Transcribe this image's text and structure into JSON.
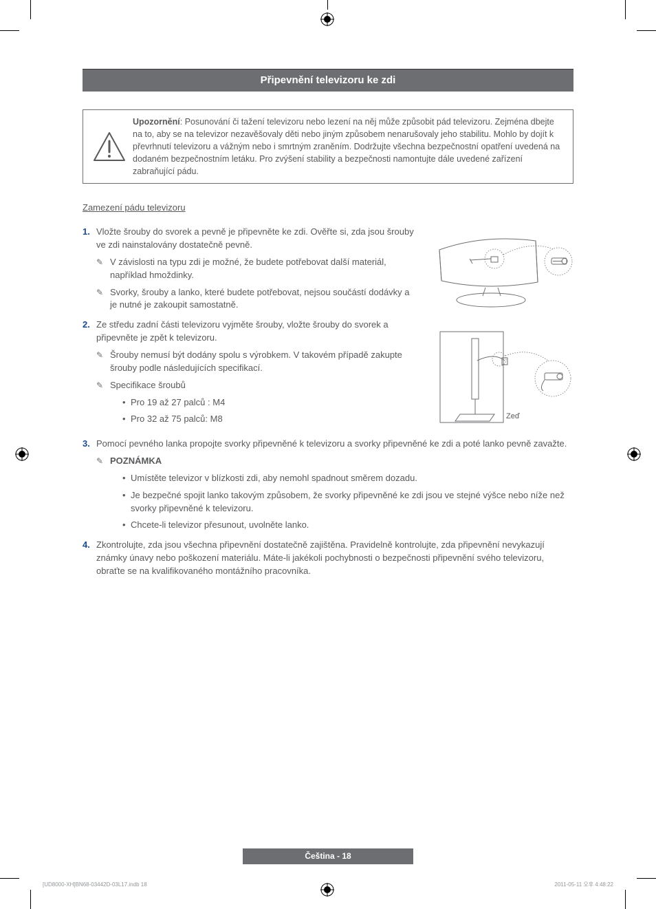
{
  "crop_marks": {
    "color": "#000000"
  },
  "section": {
    "title": "Připevnění televizoru ke zdi"
  },
  "warning": {
    "label": "Upozornění",
    "text": ": Posunování či tažení televizoru nebo lezení na něj může způsobit pád televizoru. Zejména dbejte na to, aby se na televizor nezavěšovaly děti nebo jiným způsobem nenarušovaly jeho stabilitu. Mohlo by dojít k převrhnutí televizoru a vážným nebo i smrtným zraněním. Dodržujte všechna bezpečnostní opatření uvedená na dodaném bezpečnostním letáku. Pro zvýšení stability a bezpečnosti namontujte dále uvedené zařízení zabraňující pádu."
  },
  "subheading": "Zamezení pádu televizoru",
  "note_glyph": "✎",
  "illustration": {
    "wall_label": "Zeď",
    "stroke": "#6d6e71",
    "dash": "1.5 2"
  },
  "steps": [
    {
      "text": "Vložte šrouby do svorek a pevně je připevněte ke zdi. Ověřte si, zda jsou šrouby ve zdi nainstalovány dostatečně pevně.",
      "notes": [
        "V závislosti na typu zdi je možné, že budete potřebovat další materiál, například hmoždinky.",
        "Svorky, šrouby a lanko, které budete potřebovat, nejsou součástí dodávky a je nutné je zakoupit samostatně."
      ]
    },
    {
      "text": "Ze středu zadní části televizoru vyjměte šrouby, vložte šrouby do svorek a připevněte je zpět k televizoru.",
      "notes": [
        "Šrouby nemusí být dodány spolu s výrobkem. V takovém případě zakupte šrouby podle následujících specifikací.",
        "Specifikace šroubů"
      ],
      "bullets": [
        "Pro 19 až 27 palců : M4",
        "Pro 32 až 75 palců: M8"
      ]
    },
    {
      "full_width": true,
      "text": "Pomocí pevného lanka propojte svorky připevněné k televizoru a svorky připevněné ke zdi a poté lanko pevně zavažte.",
      "notes": [
        "POZNÁMKA"
      ],
      "note_bold": true,
      "bullets": [
        "Umístěte televizor v blízkosti zdi, aby nemohl spadnout směrem dozadu.",
        "Je bezpečné spojit lanko takovým způsobem, že svorky připevněné ke zdi jsou ve stejné výšce nebo níže než svorky připevněné k televizoru.",
        "Chcete-li televizor přesunout, uvolněte lanko."
      ]
    },
    {
      "full_width": true,
      "text": "Zkontrolujte, zda jsou všechna připevnění dostatečně zajištěna. Pravidelně kontrolujte, zda připevnění nevykazují známky únavy nebo poškození materiálu. Máte-li jakékoli pochybnosti o bezpečnosti připevnění svého televizoru, obraťte se na kvalifikovaného montážního pracovníka."
    }
  ],
  "footer": {
    "lang_page": "Čeština - 18",
    "left": "[UD8000-XH]BN68-03442D-03L17.indb   18",
    "right": "2011-05-11   오후 4:48:22"
  }
}
